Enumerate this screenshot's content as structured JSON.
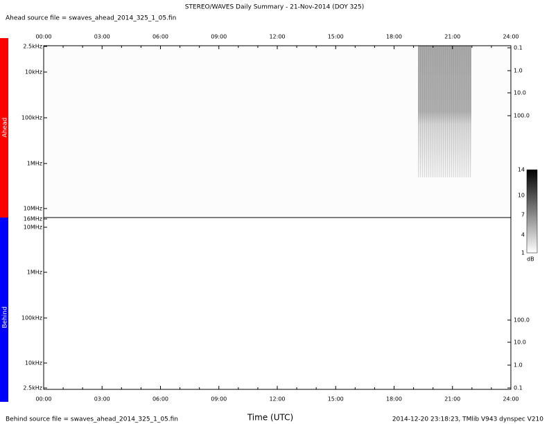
{
  "header": {
    "title": "STEREO/WAVES Daily Summary - 21-Nov-2014 (DOY 325)",
    "ahead_source": "Ahead source file = swaves_ahead_2014_325_1_05.fin"
  },
  "time_ticks": [
    "00:00",
    "03:00",
    "06:00",
    "09:00",
    "12:00",
    "15:00",
    "18:00",
    "21:00",
    "24:00"
  ],
  "ahead": {
    "label": "Ahead",
    "freq_ticks": [
      "2.5kHz",
      "10kHz",
      "100kHz",
      "1MHz",
      "10MHz",
      "16MHz"
    ],
    "right_ticks": [
      "0.1",
      "1.0",
      "10.0",
      "100.0"
    ]
  },
  "behind": {
    "label": "Behind",
    "freq_ticks": [
      "10MHz",
      "1MHz",
      "100kHz",
      "10kHz",
      "2.5kHz"
    ],
    "right_ticks": [
      "100.0",
      "10.0",
      "1.0",
      "0.1"
    ]
  },
  "colorbar": {
    "ticks": [
      "14",
      "10",
      "7",
      "4",
      "1"
    ],
    "unit": "dB"
  },
  "footer": {
    "behind_source": "Behind source file = swaves_ahead_2014_325_1_05.fin",
    "axis_label": "Time (UTC)",
    "stamp": "2014-12-20 23:18:23, TMlib V943 dynspec V210"
  }
}
